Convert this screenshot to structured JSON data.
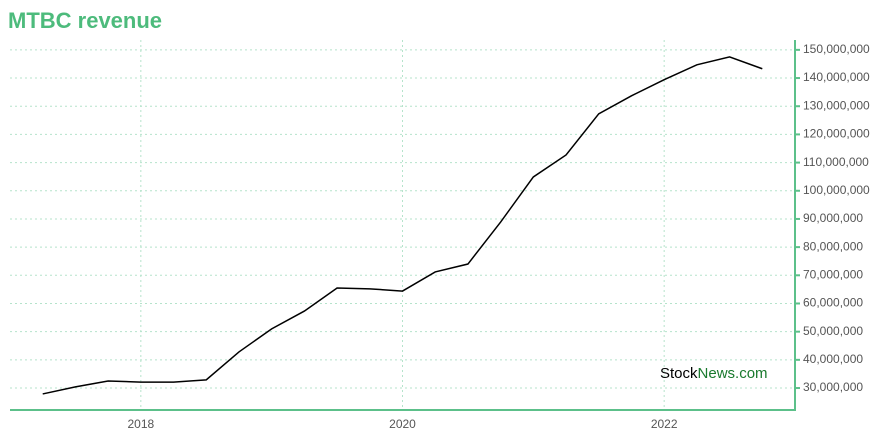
{
  "chart_data": {
    "type": "line",
    "title": "MTBC revenue",
    "x": [
      2017.25,
      2017.5,
      2017.75,
      2018,
      2018.25,
      2018.5,
      2018.75,
      2019,
      2019.25,
      2019.5,
      2019.75,
      2020,
      2020.25,
      2020.5,
      2020.75,
      2021,
      2021.25,
      2021.5,
      2021.75,
      2022,
      2022.25,
      2022.5,
      2022.75
    ],
    "series": [
      {
        "color": "#000000",
        "values": [
          27900000,
          30400000,
          32500000,
          32100000,
          32100000,
          32900000,
          42800000,
          51000000,
          57300000,
          65500000,
          65200000,
          64400000,
          71200000,
          74000000,
          88900000,
          104900000,
          112700000,
          127300000,
          133700000,
          139400000,
          144700000,
          147500000,
          143300000
        ]
      }
    ],
    "xlim": [
      2017,
      2023
    ],
    "xticks": [
      2018,
      2020,
      2022
    ],
    "ylim": [
      22200000,
      153500000
    ],
    "yticks": [
      {
        "value": 30000000,
        "label": "30,000,000"
      },
      {
        "value": 40000000,
        "label": "40,000,000"
      },
      {
        "value": 50000000,
        "label": "50,000,000"
      },
      {
        "value": 60000000,
        "label": "60,000,000"
      },
      {
        "value": 70000000,
        "label": "70,000,000"
      },
      {
        "value": 80000000,
        "label": "80,000,000"
      },
      {
        "value": 90000000,
        "label": "90,000,000"
      },
      {
        "value": 100000000,
        "label": "100,000,000"
      },
      {
        "value": 110000000,
        "label": "110,000,000"
      },
      {
        "value": 120000000,
        "label": "120,000,000"
      },
      {
        "value": 130000000,
        "label": "130,000,000"
      },
      {
        "value": 140000000,
        "label": "140,000,000"
      },
      {
        "value": 150000000,
        "label": "150,000,000"
      }
    ],
    "grid": true,
    "axis_color": "#5cc08a",
    "grid_color": "#b5e3cb",
    "watermark": [
      {
        "text": "Stock",
        "color": "#000000"
      },
      {
        "text": "News.com",
        "color": "#1a7a2e"
      }
    ]
  }
}
